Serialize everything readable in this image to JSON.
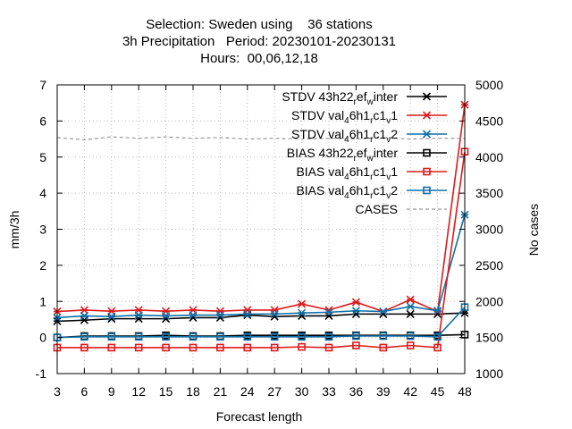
{
  "chart_data": {
    "type": "line",
    "title_lines": [
      "Selection: Sweden using    36 stations",
      "3h Precipitation   Period: 20230101-20230131",
      "Hours:  00,06,12,18"
    ],
    "xlabel": "Forecast length",
    "ylabel": "mm/3h",
    "y2label": "No cases",
    "x": [
      3,
      6,
      9,
      12,
      15,
      18,
      21,
      24,
      27,
      30,
      33,
      36,
      39,
      42,
      45,
      48
    ],
    "xlim": [
      3,
      48
    ],
    "ylim": [
      -1,
      7
    ],
    "y2lim": [
      1000,
      5000
    ],
    "yticks": [
      "-1",
      "0",
      "1",
      "2",
      "3",
      "4",
      "5",
      "6",
      "7"
    ],
    "y2ticks": [
      "1000",
      "1500",
      "2000",
      "2500",
      "3000",
      "3500",
      "4000",
      "4500",
      "5000"
    ],
    "xticks": [
      "3",
      "6",
      "9",
      "12",
      "15",
      "18",
      "21",
      "24",
      "27",
      "30",
      "33",
      "36",
      "39",
      "42",
      "45",
      "48"
    ],
    "grid": true,
    "legend_position": "top-right",
    "series": [
      {
        "name": "STDV 43h22",
        "legend": {
          "base": "STDV 43h22",
          "parts": [
            [
              "r",
              "sub"
            ],
            [
              "ef",
              ""
            ],
            [
              "w",
              "sub"
            ],
            [
              "inter",
              ""
            ]
          ]
        },
        "color": "#000000",
        "marker": "star",
        "axis": "y",
        "values": [
          0.45,
          0.48,
          0.52,
          0.52,
          0.52,
          0.55,
          0.55,
          0.62,
          0.58,
          0.6,
          0.6,
          0.65,
          0.65,
          0.65,
          0.65,
          0.68
        ]
      },
      {
        "name": "STDV val46h1",
        "legend": {
          "base": "STDV val",
          "parts": [
            [
              "4",
              "sub"
            ],
            [
              "6h1",
              ""
            ],
            [
              "r",
              "sub"
            ],
            [
              "c1",
              ""
            ],
            [
              "v",
              "sub"
            ],
            [
              "1",
              ""
            ]
          ]
        },
        "color": "#dd1a1a",
        "marker": "star",
        "axis": "y",
        "values": [
          0.72,
          0.76,
          0.73,
          0.76,
          0.73,
          0.76,
          0.73,
          0.76,
          0.76,
          0.93,
          0.76,
          0.98,
          0.72,
          1.05,
          0.72,
          6.45
        ]
      },
      {
        "name": "STDV val46h1 v2",
        "legend": {
          "base": "STDV val",
          "parts": [
            [
              "4",
              "sub"
            ],
            [
              "6h1",
              ""
            ],
            [
              "r",
              "sub"
            ],
            [
              "c1",
              ""
            ],
            [
              "v",
              "sub"
            ],
            [
              "2",
              ""
            ]
          ]
        },
        "color": "#1170a8",
        "marker": "star",
        "axis": "y",
        "values": [
          0.55,
          0.6,
          0.58,
          0.62,
          0.6,
          0.62,
          0.62,
          0.65,
          0.65,
          0.68,
          0.7,
          0.74,
          0.72,
          0.86,
          0.74,
          3.4
        ]
      },
      {
        "name": "BIAS 43h22",
        "legend": {
          "base": "BIAS 43h22",
          "parts": [
            [
              "r",
              "sub"
            ],
            [
              "ef",
              ""
            ],
            [
              "w",
              "sub"
            ],
            [
              "inter",
              ""
            ]
          ]
        },
        "color": "#000000",
        "marker": "square",
        "axis": "y",
        "values": [
          0.0,
          0.04,
          0.04,
          0.04,
          0.06,
          0.04,
          0.04,
          0.06,
          0.06,
          0.06,
          0.06,
          0.06,
          0.06,
          0.06,
          0.06,
          0.08
        ]
      },
      {
        "name": "BIAS val46h1",
        "legend": {
          "base": "BIAS val",
          "parts": [
            [
              "4",
              "sub"
            ],
            [
              "6h1",
              ""
            ],
            [
              "r",
              "sub"
            ],
            [
              "c1",
              ""
            ],
            [
              "v",
              "sub"
            ],
            [
              "1",
              ""
            ]
          ]
        },
        "color": "#dd1a1a",
        "marker": "square",
        "axis": "y",
        "values": [
          -0.28,
          -0.28,
          -0.28,
          -0.28,
          -0.28,
          -0.28,
          -0.28,
          -0.28,
          -0.28,
          -0.26,
          -0.28,
          -0.22,
          -0.28,
          -0.22,
          -0.28,
          5.15
        ]
      },
      {
        "name": "BIAS val46h1 v2",
        "legend": {
          "base": "BIAS val",
          "parts": [
            [
              "4",
              "sub"
            ],
            [
              "6h1",
              ""
            ],
            [
              "r",
              "sub"
            ],
            [
              "c1",
              ""
            ],
            [
              "v",
              "sub"
            ],
            [
              "2",
              ""
            ]
          ]
        },
        "color": "#1170a8",
        "marker": "square",
        "axis": "y",
        "values": [
          0.0,
          0.02,
          0.02,
          0.02,
          0.02,
          0.02,
          0.02,
          0.02,
          0.02,
          0.02,
          0.02,
          0.04,
          0.04,
          0.04,
          0.02,
          0.84
        ]
      },
      {
        "name": "CASES",
        "legend": {
          "base": "CASES",
          "parts": []
        },
        "color": "#999999",
        "marker": "none",
        "dash": true,
        "axis": "y2",
        "values": [
          4270,
          4240,
          4280,
          4260,
          4280,
          4260,
          4270,
          4250,
          4260,
          4250,
          4260,
          4250,
          4270,
          4250,
          4260,
          4260
        ]
      }
    ]
  }
}
